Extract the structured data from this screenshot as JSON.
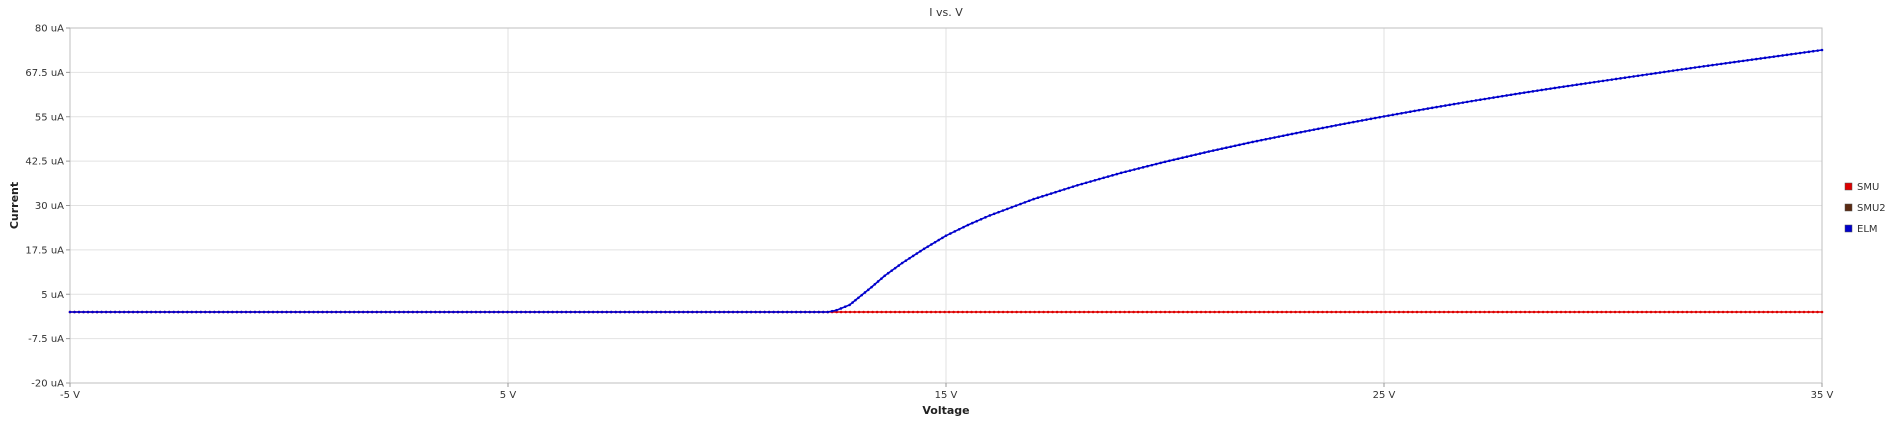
{
  "chart_data": {
    "type": "line",
    "title": "I vs. V",
    "xlabel": "Voltage",
    "ylabel": "Current",
    "xlim": [
      -5,
      35
    ],
    "ylim": [
      -20,
      80
    ],
    "x_ticks": [
      "-5 V",
      "5 V",
      "15 V",
      "25 V",
      "35 V"
    ],
    "x_tick_values": [
      -5,
      5,
      15,
      25,
      35
    ],
    "y_ticks": [
      "80 uA",
      "67.5 uA",
      "55 uA",
      "42.5 uA",
      "30 uA",
      "17.5 uA",
      "5 uA",
      "-7.5 uA",
      "-20 uA"
    ],
    "y_tick_values": [
      80,
      67.5,
      55,
      42.5,
      30,
      17.5,
      5,
      -7.5,
      -20
    ],
    "grid": true,
    "legend_position": "right",
    "series": [
      {
        "name": "SMU",
        "color": "#dd0000",
        "x": [
          -5,
          12.2,
          12.4,
          35
        ],
        "y": [
          0,
          0,
          0,
          0
        ]
      },
      {
        "name": "SMU2",
        "color": "#5a2a12",
        "x": [],
        "y": []
      },
      {
        "name": "ELM",
        "color": "#0000cc",
        "x": [
          -5,
          12.3,
          12.5,
          12.8,
          13.0,
          13.3,
          13.6,
          14.0,
          14.5,
          15.0,
          15.5,
          16.0,
          17.0,
          18.0,
          19.0,
          20.0,
          21.0,
          22.0,
          23.0,
          24.0,
          25.0,
          26.0,
          27.0,
          28.0,
          29.0,
          30.0,
          31.0,
          32.0,
          33.0,
          34.0,
          35.0
        ],
        "y": [
          0,
          0,
          0.5,
          2.0,
          4.0,
          7.0,
          10.2,
          13.8,
          17.8,
          21.5,
          24.5,
          27.2,
          31.8,
          35.7,
          39.2,
          42.3,
          45.2,
          47.9,
          50.4,
          52.8,
          55.1,
          57.3,
          59.4,
          61.4,
          63.3,
          65.1,
          66.9,
          68.7,
          70.4,
          72.1,
          73.8
        ]
      }
    ]
  }
}
